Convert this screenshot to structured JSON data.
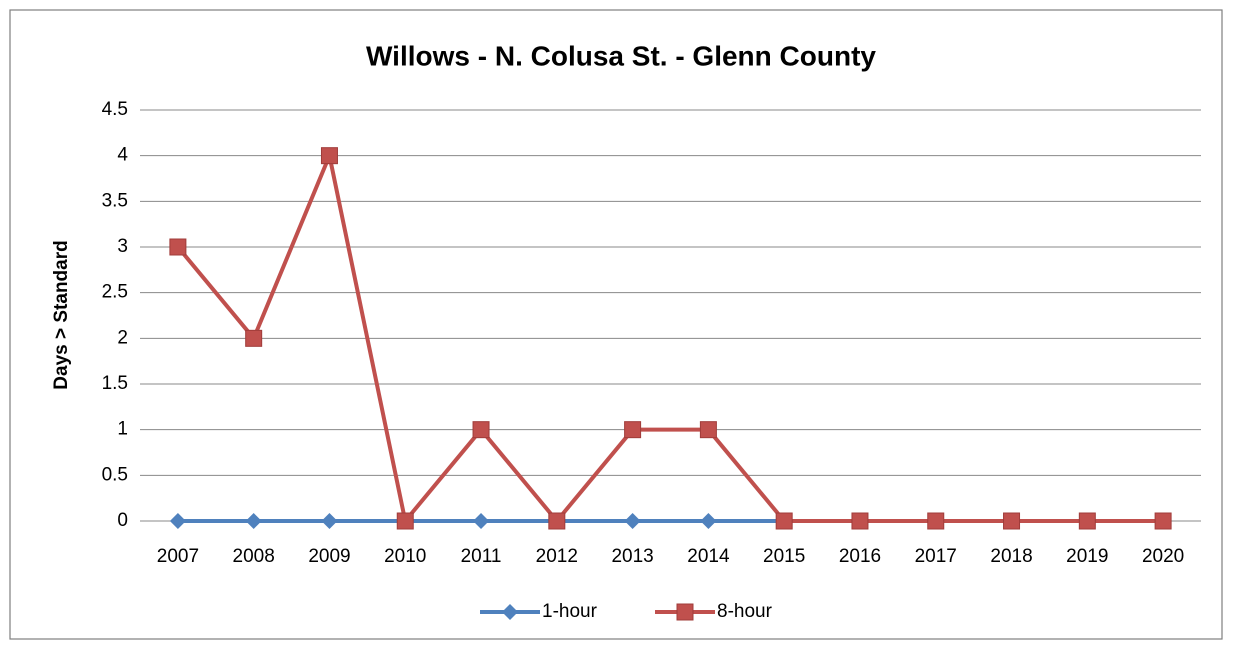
{
  "chart_data": {
    "type": "line",
    "title": "Willows - N. Colusa St. - Glenn County",
    "y_label": "Days > Standard",
    "categories": [
      "2007",
      "2008",
      "2009",
      "2010",
      "2011",
      "2012",
      "2013",
      "2014",
      "2015",
      "2016",
      "2017",
      "2018",
      "2019",
      "2020"
    ],
    "series": [
      {
        "name": "1-hour",
        "color": "#4f81bd",
        "marker": "diamond",
        "values": [
          0,
          0,
          0,
          0,
          0,
          0,
          0,
          0,
          0,
          null,
          null,
          null,
          null,
          null
        ]
      },
      {
        "name": "8-hour",
        "color": "#c0504d",
        "marker": "square",
        "values": [
          3,
          2,
          4,
          0,
          1,
          0,
          1,
          1,
          0,
          0,
          0,
          0,
          0,
          0
        ]
      }
    ],
    "ylim": [
      0,
      4.5
    ],
    "yticks": [
      0,
      0.5,
      1,
      1.5,
      2,
      2.5,
      3,
      3.5,
      4,
      4.5
    ],
    "grid": true,
    "legend": "bottom"
  }
}
